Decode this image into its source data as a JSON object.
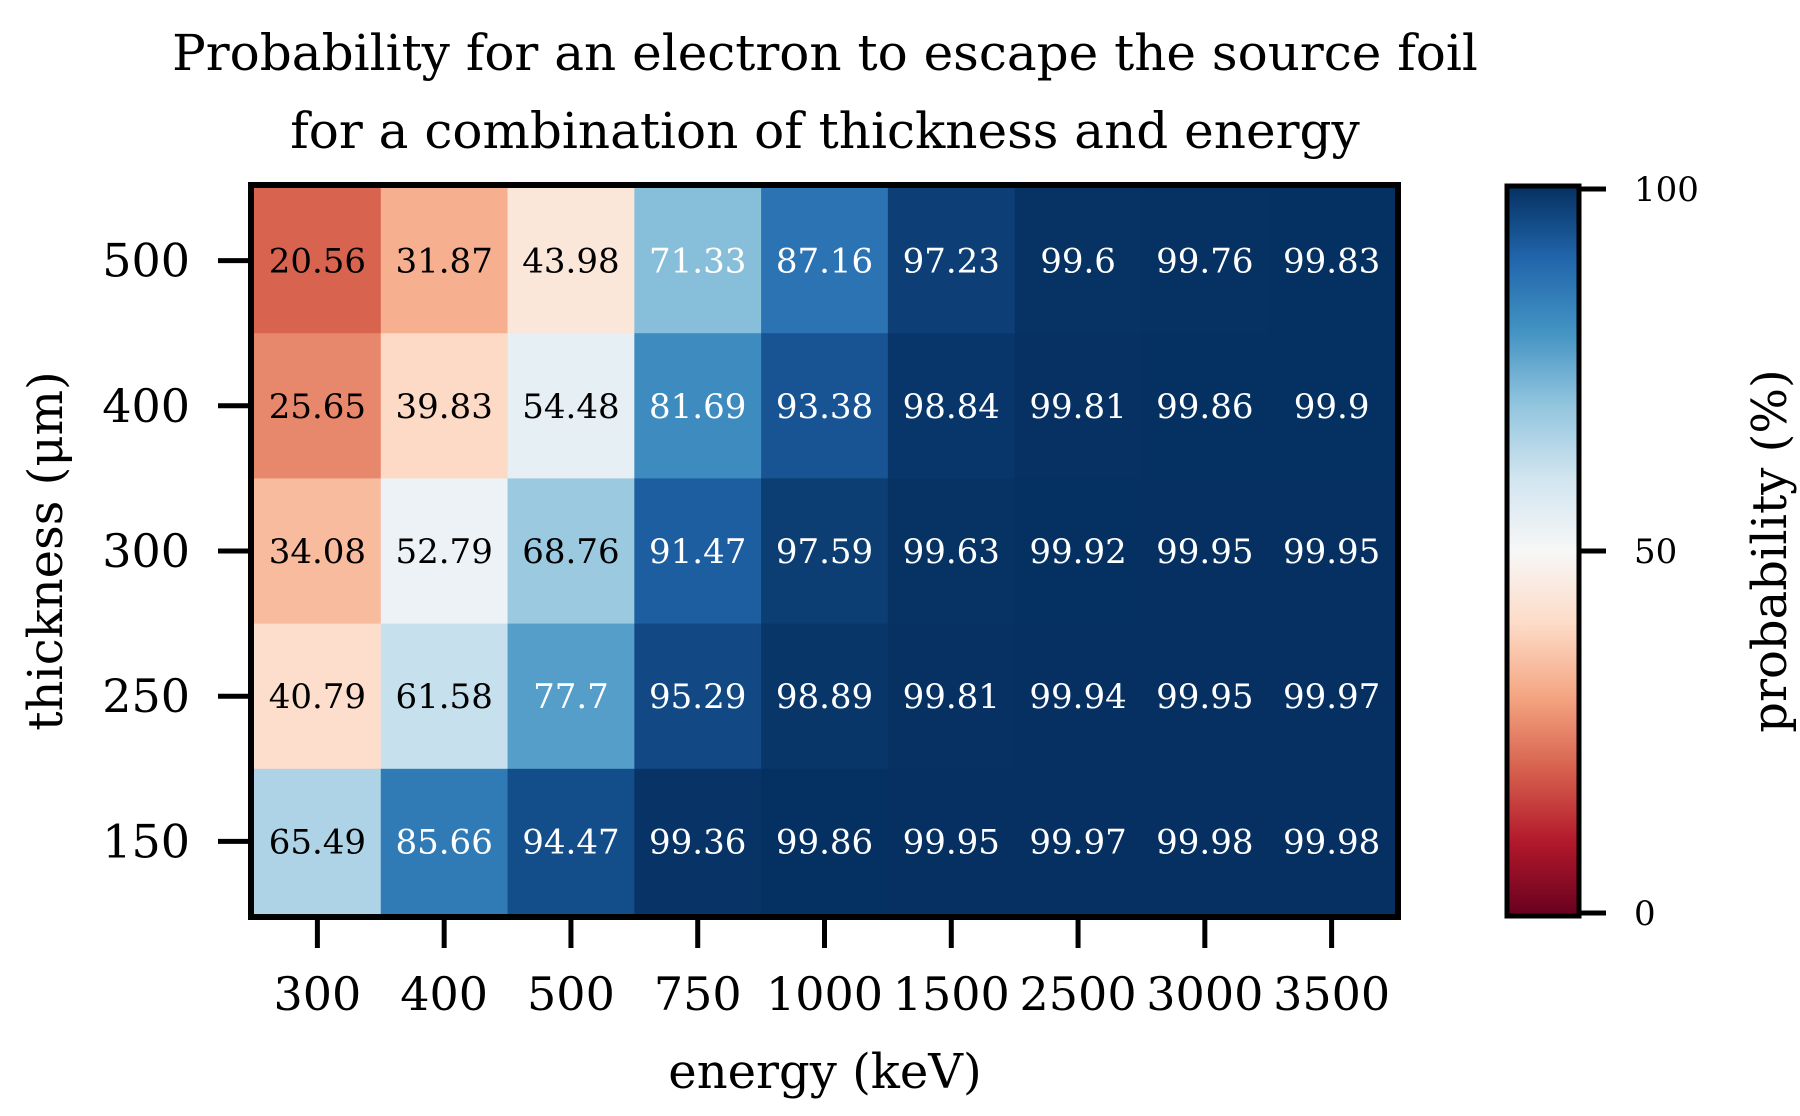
{
  "chart_data": {
    "type": "heatmap",
    "title_lines": [
      "Probability for an electron to escape the source foil",
      "for a combination of thickness and energy"
    ],
    "xlabel": "energy (keV)",
    "ylabel": "thickness (μm)",
    "x_categories": [
      "300",
      "400",
      "500",
      "750",
      "1000",
      "1500",
      "2500",
      "3000",
      "3500"
    ],
    "y_categories": [
      "500",
      "400",
      "300",
      "250",
      "150"
    ],
    "values": [
      [
        20.56,
        31.87,
        43.98,
        71.33,
        87.16,
        97.23,
        99.6,
        99.76,
        99.83
      ],
      [
        25.65,
        39.83,
        54.48,
        81.69,
        93.38,
        98.84,
        99.81,
        99.86,
        99.9
      ],
      [
        34.08,
        52.79,
        68.76,
        91.47,
        97.59,
        99.63,
        99.92,
        99.95,
        99.95
      ],
      [
        40.79,
        61.58,
        77.7,
        95.29,
        98.89,
        99.81,
        99.94,
        99.95,
        99.97
      ],
      [
        65.49,
        85.66,
        94.47,
        99.36,
        99.86,
        99.95,
        99.97,
        99.98,
        99.98
      ]
    ],
    "value_labels": [
      [
        "20.56",
        "31.87",
        "43.98",
        "71.33",
        "87.16",
        "97.23",
        "99.6",
        "99.76",
        "99.83"
      ],
      [
        "25.65",
        "39.83",
        "54.48",
        "81.69",
        "93.38",
        "98.84",
        "99.81",
        "99.86",
        "99.9"
      ],
      [
        "34.08",
        "52.79",
        "68.76",
        "91.47",
        "97.59",
        "99.63",
        "99.92",
        "99.95",
        "99.95"
      ],
      [
        "40.79",
        "61.58",
        "77.7",
        "95.29",
        "98.89",
        "99.81",
        "99.94",
        "99.95",
        "99.97"
      ],
      [
        "65.49",
        "85.66",
        "94.47",
        "99.36",
        "99.86",
        "99.95",
        "99.97",
        "99.98",
        "99.98"
      ]
    ],
    "colormap": "RdBu",
    "colormap_stops": [
      "#67001f",
      "#b2182b",
      "#d6604d",
      "#f4a582",
      "#fddbc7",
      "#f7f7f7",
      "#d1e5f0",
      "#92c5de",
      "#4393c3",
      "#2166ac",
      "#053061"
    ],
    "value_range": [
      0,
      100
    ],
    "colorbar": {
      "label": "probability (%)",
      "ticks": [
        0,
        50,
        100
      ],
      "tick_labels": [
        "0",
        "50",
        "100"
      ]
    },
    "cell_text_colors": {
      "dark": "#000000",
      "light": "#ffffff"
    }
  }
}
